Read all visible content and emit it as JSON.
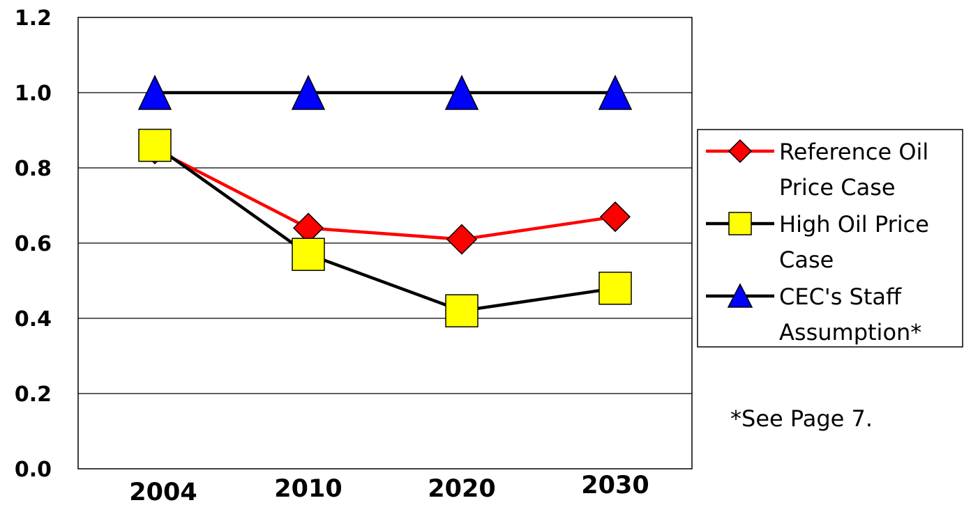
{
  "chart_data": {
    "type": "line",
    "title": "",
    "xlabel": "",
    "ylabel": "",
    "categories": [
      "2004",
      "2010",
      "2020",
      "2030"
    ],
    "ylim": [
      0,
      1.2
    ],
    "yticks": [
      "0.0",
      "0.2",
      "0.4",
      "0.6",
      "0.8",
      "1.0",
      "1.2"
    ],
    "grid": "horizontal",
    "legend_placement": "right",
    "series": [
      {
        "name": "CEC's Staff Assumption*",
        "legend_lines": [
          "CEC's Staff",
          "Assumption*"
        ],
        "values": [
          1.0,
          1.0,
          1.0,
          1.0
        ],
        "line_color": "#000000",
        "marker": "triangle",
        "marker_color": "#0000FF"
      },
      {
        "name": "Reference Oil Price Case",
        "legend_lines": [
          "Reference Oil",
          "Price Case"
        ],
        "values": [
          0.85,
          0.64,
          0.61,
          0.67
        ],
        "line_color": "#FF0000",
        "marker": "diamond",
        "marker_color": "#FF0000"
      },
      {
        "name": "High Oil Price Case",
        "legend_lines": [
          "High Oil Price",
          "Case"
        ],
        "values": [
          0.86,
          0.57,
          0.42,
          0.48
        ],
        "line_color": "#000000",
        "marker": "square",
        "marker_color": "#FFFF00"
      }
    ],
    "legend_order": [
      "Reference Oil Price Case",
      "High Oil Price Case",
      "CEC's Staff Assumption*"
    ],
    "annotations": [
      "*See Page 7."
    ]
  }
}
